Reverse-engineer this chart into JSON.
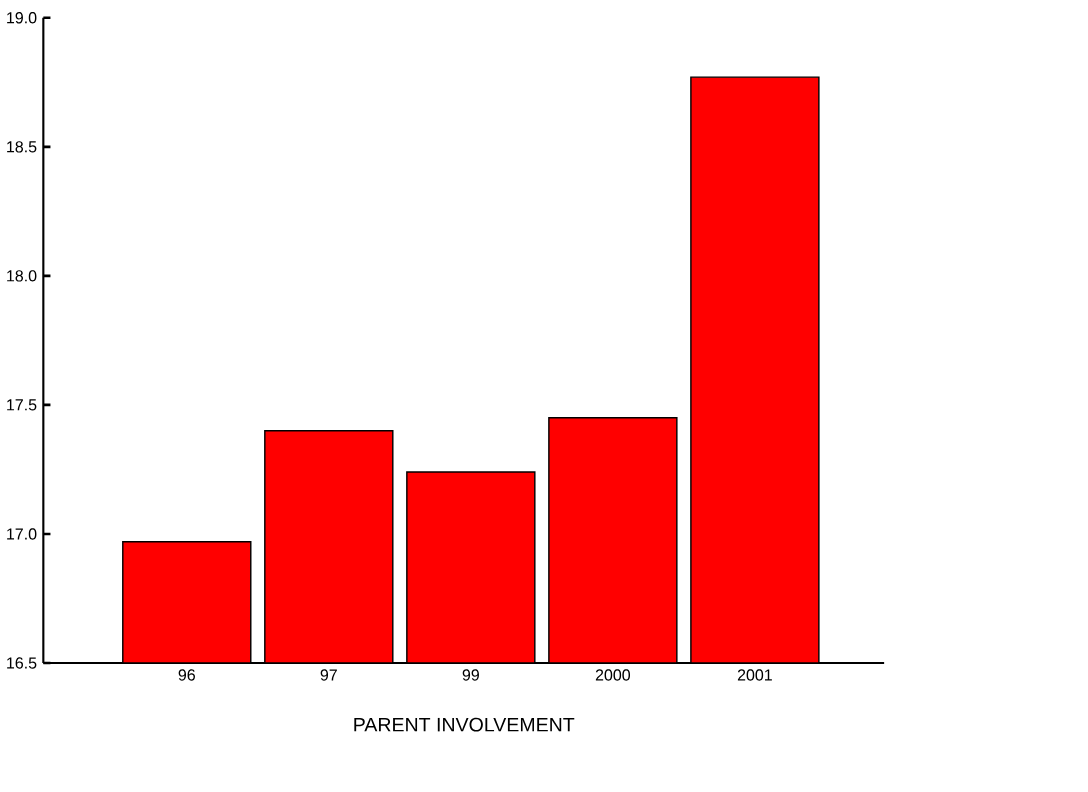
{
  "chart_data": {
    "type": "bar",
    "xlabel": "PARENT INVOLVEMENT",
    "categories": [
      "96",
      "97",
      "99",
      "2000",
      "2001"
    ],
    "values": [
      16.97,
      17.4,
      17.24,
      17.45,
      18.77
    ],
    "color": "#ff0000",
    "ylim": [
      16.5,
      19.0
    ],
    "yticks": [
      {
        "value": 16.5,
        "label": "16.5"
      },
      {
        "value": 17.0,
        "label": "17.0"
      },
      {
        "value": 17.5,
        "label": "17.5"
      },
      {
        "value": 18.0,
        "label": "18.0"
      },
      {
        "value": 18.5,
        "label": "18.5"
      },
      {
        "value": 19.0,
        "label": "19.0"
      }
    ],
    "grid": false
  }
}
